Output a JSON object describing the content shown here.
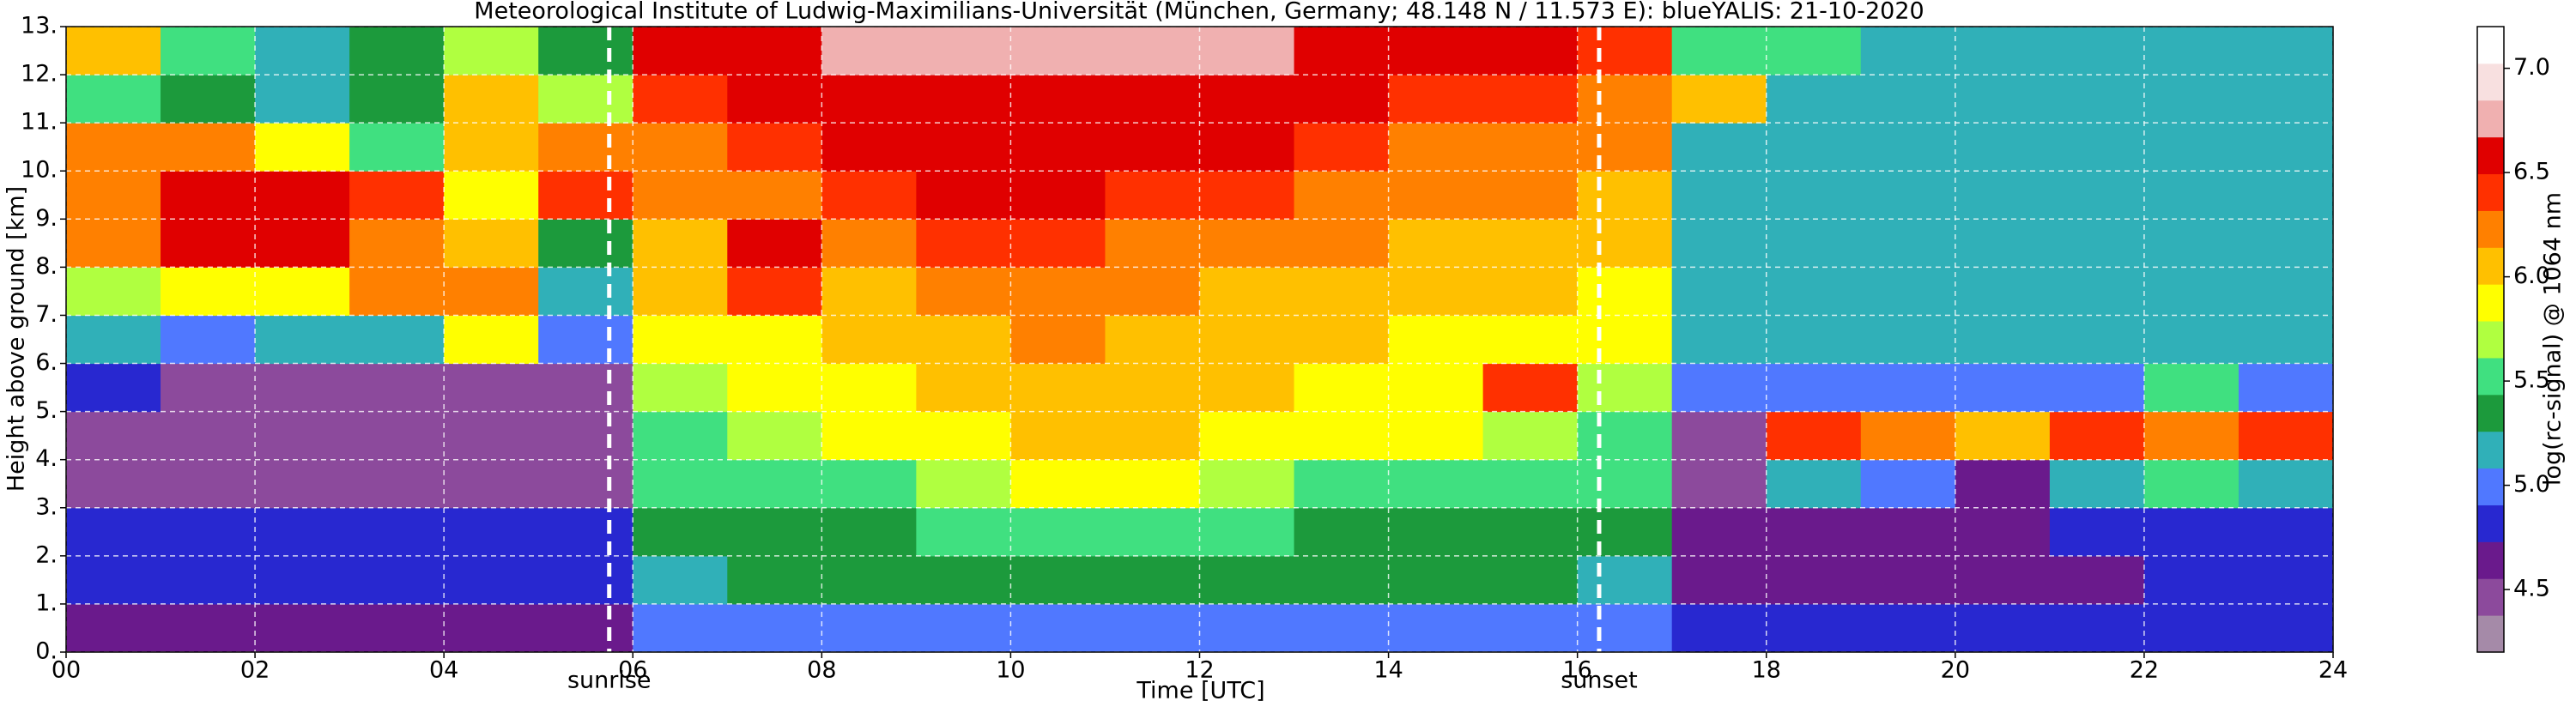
{
  "chart_data": {
    "type": "heatmap",
    "title": "Meteorological Institute of Ludwig-Maximilians-Universität (München, Germany; 48.148 N / 11.573 E):    blueYALIS: 21-10-2020",
    "x_label": "Time [UTC]",
    "y_label": "Height above ground [km]",
    "colorbar_label": "log(rc-signal) @ 1064 nm",
    "x": [
      0,
      1,
      2,
      3,
      4,
      5,
      6,
      7,
      8,
      9,
      10,
      11,
      12,
      13,
      14,
      15,
      16,
      17,
      18,
      19,
      20,
      21,
      22,
      23,
      24
    ],
    "y": [
      0,
      1,
      2,
      3,
      4,
      5,
      6,
      7,
      8,
      9,
      10,
      11,
      12,
      13
    ],
    "z": [
      [
        4.6,
        4.6,
        4.6,
        4.6,
        4.6,
        4.6,
        5.0,
        5.0,
        5.0,
        5.0,
        5.0,
        5.0,
        5.0,
        5.0,
        5.0,
        5.0,
        5.0,
        4.9,
        4.9,
        4.9,
        4.9,
        4.9,
        4.9,
        4.9
      ],
      [
        4.9,
        4.9,
        4.9,
        4.9,
        4.8,
        4.9,
        5.2,
        5.3,
        5.3,
        5.4,
        5.4,
        5.4,
        5.3,
        5.3,
        5.3,
        5.3,
        5.2,
        4.6,
        4.6,
        4.6,
        4.7,
        4.7,
        4.8,
        4.8
      ],
      [
        4.9,
        4.9,
        4.9,
        4.9,
        4.9,
        4.9,
        5.3,
        5.4,
        5.4,
        5.5,
        5.5,
        5.5,
        5.5,
        5.4,
        5.4,
        5.4,
        5.3,
        4.6,
        4.6,
        4.6,
        4.6,
        4.8,
        4.8,
        4.8
      ],
      [
        4.4,
        4.4,
        4.4,
        4.4,
        4.4,
        4.4,
        5.5,
        5.6,
        5.6,
        5.7,
        5.8,
        5.8,
        5.7,
        5.6,
        5.6,
        5.6,
        5.5,
        4.5,
        5.2,
        5.0,
        4.6,
        5.1,
        5.6,
        5.2
      ],
      [
        4.5,
        4.4,
        4.4,
        4.4,
        4.4,
        4.4,
        5.6,
        5.7,
        5.8,
        5.9,
        6.0,
        6.0,
        5.9,
        5.8,
        5.8,
        5.7,
        5.6,
        4.5,
        6.4,
        6.2,
        6.0,
        6.4,
        6.2,
        6.4
      ],
      [
        4.8,
        4.5,
        4.5,
        4.5,
        4.5,
        4.5,
        5.7,
        5.8,
        5.9,
        6.0,
        6.1,
        6.1,
        6.0,
        5.9,
        5.9,
        6.4,
        5.7,
        5.0,
        5.0,
        5.0,
        5.0,
        5.0,
        5.6,
        5.0
      ],
      [
        5.1,
        5.0,
        5.1,
        5.1,
        5.8,
        5.0,
        5.8,
        5.9,
        6.0,
        6.1,
        6.2,
        6.1,
        6.0,
        6.0,
        5.9,
        5.9,
        5.8,
        5.1,
        5.1,
        5.1,
        5.1,
        5.1,
        5.1,
        5.1
      ],
      [
        5.7,
        5.8,
        5.9,
        6.3,
        6.2,
        5.1,
        6.0,
        6.4,
        6.1,
        6.2,
        6.3,
        6.2,
        6.1,
        6.1,
        6.0,
        6.0,
        5.9,
        5.2,
        5.2,
        5.2,
        5.2,
        5.2,
        5.2,
        5.2
      ],
      [
        6.3,
        6.5,
        6.6,
        6.3,
        6.0,
        5.3,
        6.1,
        6.6,
        6.2,
        6.4,
        6.4,
        6.3,
        6.2,
        6.2,
        6.1,
        6.1,
        6.0,
        5.2,
        5.2,
        5.2,
        5.2,
        5.2,
        5.2,
        5.2
      ],
      [
        6.3,
        6.5,
        6.6,
        6.4,
        5.9,
        6.4,
        6.2,
        6.3,
        6.4,
        6.6,
        6.5,
        6.4,
        6.4,
        6.3,
        6.2,
        6.2,
        6.1,
        5.2,
        5.2,
        5.2,
        5.2,
        5.2,
        5.2,
        5.2
      ],
      [
        6.2,
        6.3,
        5.8,
        5.6,
        6.0,
        6.2,
        6.3,
        6.4,
        6.5,
        6.6,
        6.5,
        6.5,
        6.6,
        6.4,
        6.3,
        6.3,
        6.2,
        5.2,
        5.2,
        5.2,
        5.2,
        5.2,
        5.2,
        5.2
      ],
      [
        5.6,
        5.4,
        5.2,
        5.3,
        6.0,
        5.7,
        6.4,
        6.5,
        6.6,
        6.6,
        6.5,
        6.6,
        6.6,
        6.5,
        6.4,
        6.4,
        6.3,
        6.0,
        5.2,
        5.2,
        5.2,
        5.2,
        5.2,
        5.2
      ],
      [
        6.0,
        5.5,
        5.2,
        5.4,
        5.7,
        5.4,
        6.5,
        6.6,
        6.7,
        6.8,
        6.7,
        6.7,
        6.8,
        6.6,
        6.5,
        6.5,
        6.4,
        5.6,
        5.5,
        5.2,
        5.2,
        5.2,
        5.2,
        5.2
      ]
    ],
    "xlim": [
      0,
      24
    ],
    "ylim": [
      0,
      13
    ],
    "clim": [
      4.2,
      7.2
    ],
    "xticks": [
      {
        "value": 0,
        "label": "00"
      },
      {
        "value": 2,
        "label": "02"
      },
      {
        "value": 4,
        "label": "04"
      },
      {
        "value": 6,
        "label": "06"
      },
      {
        "value": 8,
        "label": "08"
      },
      {
        "value": 10,
        "label": "10"
      },
      {
        "value": 12,
        "label": "12"
      },
      {
        "value": 14,
        "label": "14"
      },
      {
        "value": 16,
        "label": "16"
      },
      {
        "value": 18,
        "label": "18"
      },
      {
        "value": 20,
        "label": "20"
      },
      {
        "value": 22,
        "label": "22"
      },
      {
        "value": 24,
        "label": "24"
      }
    ],
    "yticks": [
      {
        "value": 0,
        "label": "0."
      },
      {
        "value": 1,
        "label": "1."
      },
      {
        "value": 2,
        "label": "2."
      },
      {
        "value": 3,
        "label": "3."
      },
      {
        "value": 4,
        "label": "4."
      },
      {
        "value": 5,
        "label": "5."
      },
      {
        "value": 6,
        "label": "6."
      },
      {
        "value": 7,
        "label": "7."
      },
      {
        "value": 8,
        "label": "8."
      },
      {
        "value": 9,
        "label": "9."
      },
      {
        "value": 10,
        "label": "10."
      },
      {
        "value": 11,
        "label": "11."
      },
      {
        "value": 12,
        "label": "12."
      },
      {
        "value": 13,
        "label": "13."
      }
    ],
    "cticks": [
      4.5,
      {
        "value": 5,
        "label": "5.0"
      },
      5.5,
      {
        "value": 6,
        "label": "6.0"
      },
      6.5,
      {
        "value": 7,
        "label": "7.0"
      }
    ],
    "colorscale": [
      "#a58aa8",
      "#8c4a9c",
      "#6a1a8c",
      "#2828d0",
      "#5078ff",
      "#30b0b8",
      "#1c9a3c",
      "#40e080",
      "#b0ff40",
      "#ffff00",
      "#ffc000",
      "#ff8000",
      "#ff3000",
      "#e00000",
      "#f0b0b0",
      "#f8e0e0",
      "#ffffff"
    ],
    "grid": true,
    "annotations": [
      {
        "x": 5.75,
        "text": "sunrise"
      },
      {
        "x": 16.23,
        "text": "sunset"
      }
    ]
  }
}
